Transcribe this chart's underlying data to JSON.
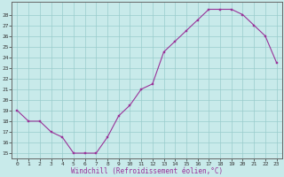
{
  "hours": [
    0,
    1,
    2,
    3,
    4,
    5,
    6,
    7,
    8,
    9,
    10,
    11,
    12,
    13,
    14,
    15,
    16,
    17,
    18,
    19,
    20,
    21,
    22,
    23
  ],
  "windchill": [
    19,
    18,
    18,
    17,
    16.5,
    15,
    15,
    15,
    16.5,
    18.5,
    19.5,
    21,
    21.5,
    24.5,
    25.5,
    26.5,
    27.5,
    28.5,
    28.5,
    28.5,
    28,
    27,
    26,
    23.5
  ],
  "yticks": [
    15,
    16,
    17,
    18,
    19,
    20,
    21,
    22,
    23,
    24,
    25,
    26,
    27,
    28
  ],
  "xticks": [
    0,
    1,
    2,
    3,
    4,
    5,
    6,
    7,
    8,
    9,
    10,
    11,
    12,
    13,
    14,
    15,
    16,
    17,
    18,
    19,
    20,
    21,
    22,
    23
  ],
  "line_color": "#993399",
  "marker_color": "#993399",
  "bg_color": "#c8eaea",
  "grid_color": "#99cccc",
  "axis_color": "#666666",
  "xlabel": "Windchill (Refroidissement éolien,°C)",
  "xlabel_color": "#993399",
  "figsize": [
    3.2,
    2.0
  ],
  "dpi": 100,
  "ylim_min": 14.5,
  "ylim_max": 29.2,
  "xlim_min": -0.5,
  "xlim_max": 23.5
}
